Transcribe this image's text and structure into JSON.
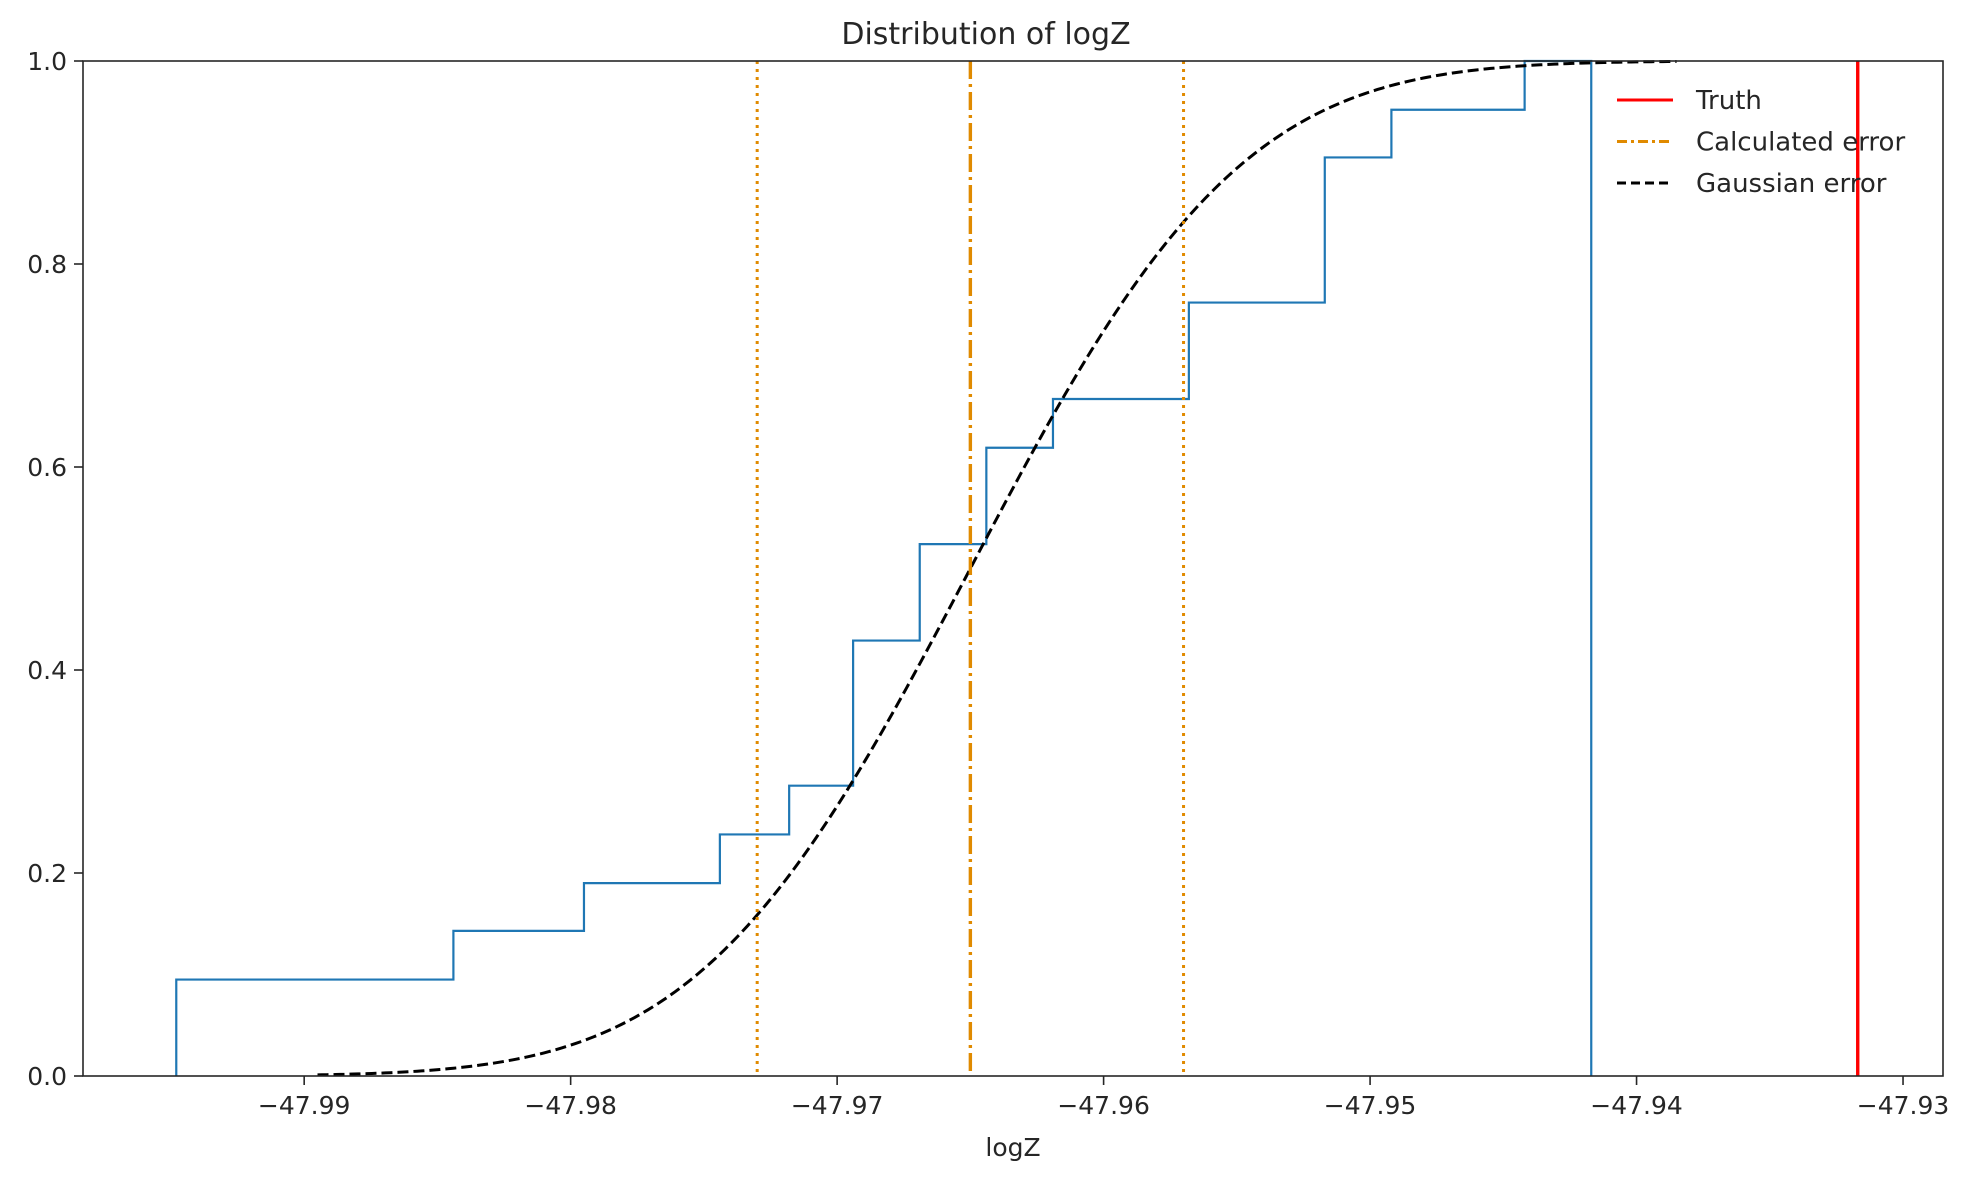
{
  "chart_data": {
    "type": "line",
    "title": "Distribution of logZ",
    "xlabel": "logZ",
    "ylabel": "",
    "xlim": [
      -47.9983,
      -47.9285
    ],
    "ylim": [
      0.0,
      1.0
    ],
    "x_ticks": [
      -47.99,
      -47.98,
      -47.97,
      -47.96,
      -47.95,
      -47.94,
      -47.93
    ],
    "x_tick_labels": [
      "−47.99",
      "−47.98",
      "−47.97",
      "−47.96",
      "−47.95",
      "−47.94",
      "−47.93"
    ],
    "y_ticks": [
      0.0,
      0.2,
      0.4,
      0.6,
      0.8,
      1.0
    ],
    "y_tick_labels": [
      "0.0",
      "0.2",
      "0.4",
      "0.6",
      "0.8",
      "1.0"
    ],
    "grid": false,
    "legend_position": "upper-right",
    "legend": [
      {
        "label": "Truth",
        "color": "#ff0000",
        "style": "solid"
      },
      {
        "label": "Calculated error",
        "color": "#e08a00",
        "style": "dashdot"
      },
      {
        "label": "Gaussian error",
        "color": "#000000",
        "style": "dashed"
      }
    ],
    "empirical_cdf": {
      "color": "#1f77b4",
      "x": [
        -47.9948,
        -47.9844,
        -47.9795,
        -47.9744,
        -47.9718,
        -47.9694,
        -47.9669,
        -47.9644,
        -47.9619,
        -47.9568,
        -47.9517,
        -47.9492,
        -47.9442,
        -47.9417
      ],
      "y": [
        0.095,
        0.143,
        0.19,
        0.238,
        0.286,
        0.429,
        0.524,
        0.619,
        0.667,
        0.762,
        0.905,
        0.952,
        1.0,
        1.0
      ]
    },
    "gaussian_cdf": {
      "mean": -47.965,
      "sigma": 0.008,
      "x_start": -47.9895,
      "x_end": -47.9385
    },
    "truth": -47.9317,
    "calculated_mean": -47.965,
    "calculated_bounds": [
      -47.973,
      -47.957
    ]
  }
}
